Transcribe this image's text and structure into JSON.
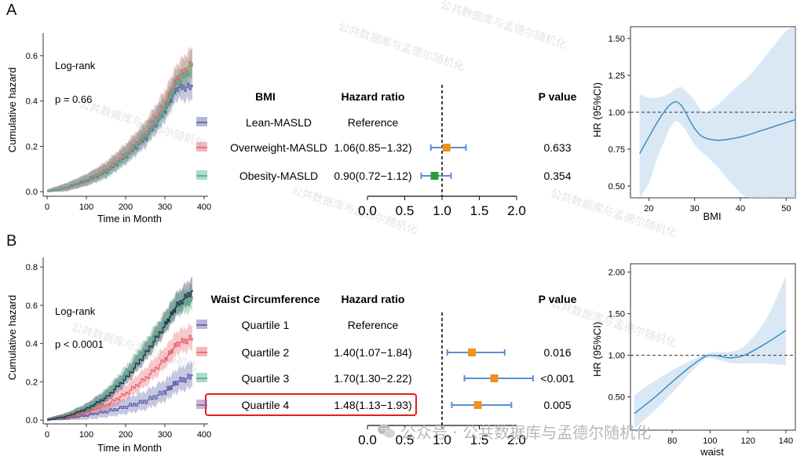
{
  "panels": {
    "a": "A",
    "b": "B"
  },
  "panelA": {
    "km": {
      "ylabel": "Cumulative hazard",
      "xlabel": "Time in Month",
      "xticks": [
        "0",
        "100",
        "200",
        "300",
        "400"
      ],
      "yticks": [
        "0.0",
        "0.2",
        "0.4",
        "0.6"
      ],
      "logrank_label": "Log-rank",
      "p_text": "p = 0.66"
    },
    "forest": {
      "col_group": "BMI",
      "col_hr": "Hazard ratio",
      "col_p": "P value",
      "xticks": [
        "0.0",
        "0.5",
        "1.0",
        "1.5",
        "2.0"
      ],
      "rows": [
        {
          "label": "Lean-MASLD",
          "hr_text": "Reference",
          "p": "",
          "color": "#5b5ea6"
        },
        {
          "label": "Overweight-MASLD",
          "hr_text": "1.06(0.85−1.32)",
          "p": "0.633",
          "color": "#e8626a"
        },
        {
          "label": "Obesity-MASLD",
          "hr_text": "0.90(0.72−1.12)",
          "p": "0.354",
          "color": "#4aad7c"
        }
      ]
    },
    "spline": {
      "ylabel": "HR (95%CI)",
      "xlabel": "BMI",
      "xticks": [
        "20",
        "30",
        "40",
        "50"
      ],
      "yticks": [
        "0.50",
        "0.75",
        "1.00",
        "1.25",
        "1.50"
      ]
    }
  },
  "panelB": {
    "km": {
      "ylabel": "Cumulative hazard",
      "xlabel": "Time in Month",
      "xticks": [
        "0",
        "100",
        "200",
        "300",
        "400"
      ],
      "yticks": [
        "0.0",
        "0.2",
        "0.4",
        "0.6",
        "0.8"
      ],
      "logrank_label": "Log-rank",
      "p_text": "p < 0.0001"
    },
    "forest": {
      "col_group": "Waist Circumference",
      "col_hr": "Hazard ratio",
      "col_p": "P value",
      "xticks": [
        "0.0",
        "0.5",
        "1.0",
        "1.5",
        "2.0"
      ],
      "rows": [
        {
          "label": "Quartile 1",
          "hr_text": "Reference",
          "p": "",
          "color": "#5b5ea6"
        },
        {
          "label": "Quartile 2",
          "hr_text": "1.40(1.07−1.84)",
          "p": "0.016",
          "color": "#e8626a"
        },
        {
          "label": "Quartile 3",
          "hr_text": "1.70(1.30−2.22)",
          "p": "<0.001",
          "color": "#4aad7c"
        },
        {
          "label": "Quartile 4",
          "hr_text": "1.48(1.13−1.93)",
          "p": "0.005",
          "color": "#8e5ea8"
        }
      ]
    },
    "spline": {
      "ylabel": "HR (95%CI)",
      "xlabel": "waist",
      "xticks": [
        "80",
        "100",
        "120",
        "140"
      ],
      "yticks": [
        "0.50",
        "1.00",
        "1.50",
        "2.00"
      ]
    }
  },
  "watermark": {
    "text": "公共数据库与孟德尔随机化",
    "footer": "公众号 · 公共数据库与孟德尔随机化"
  },
  "chart_data": [
    {
      "type": "line",
      "id": "A-km",
      "title": "",
      "xlabel": "Time in Month",
      "ylabel": "Cumulative hazard",
      "xlim": [
        -10,
        410
      ],
      "ylim": [
        -0.02,
        0.7
      ],
      "annotations": [
        "Log-rank",
        "p = 0.66"
      ],
      "series": [
        {
          "name": "Lean-MASLD",
          "color": "#5b5ea6",
          "x": [
            0,
            50,
            100,
            150,
            200,
            250,
            300,
            330,
            370
          ],
          "y": [
            0,
            0.02,
            0.05,
            0.09,
            0.16,
            0.24,
            0.36,
            0.46,
            0.46
          ]
        },
        {
          "name": "Overweight-MASLD",
          "color": "#e8626a",
          "x": [
            0,
            50,
            100,
            150,
            200,
            250,
            300,
            330,
            370
          ],
          "y": [
            0,
            0.02,
            0.05,
            0.1,
            0.17,
            0.26,
            0.39,
            0.5,
            0.57
          ]
        },
        {
          "name": "Obesity-MASLD",
          "color": "#4aad7c",
          "x": [
            0,
            50,
            100,
            150,
            200,
            250,
            300,
            330,
            370
          ],
          "y": [
            0,
            0.02,
            0.05,
            0.09,
            0.16,
            0.25,
            0.37,
            0.48,
            0.55
          ]
        }
      ]
    },
    {
      "type": "scatter",
      "id": "A-forest",
      "title": "",
      "xlabel": "Hazard ratio",
      "xlim": [
        0,
        2.0
      ],
      "reference_line": 1.0,
      "points": [
        {
          "name": "Overweight-MASLD",
          "hr": 1.06,
          "lo": 0.85,
          "hi": 1.32,
          "color": "#f0921c"
        },
        {
          "name": "Obesity-MASLD",
          "hr": 0.9,
          "lo": 0.72,
          "hi": 1.12,
          "color": "#2d9b3a"
        }
      ]
    },
    {
      "type": "line",
      "id": "A-spline",
      "title": "",
      "xlabel": "BMI",
      "ylabel": "HR (95%CI)",
      "xlim": [
        16,
        52
      ],
      "ylim": [
        0.42,
        1.58
      ],
      "reference_line": 1.0,
      "x": [
        18,
        20,
        22,
        24,
        25,
        26,
        27,
        28,
        30,
        32,
        35,
        38,
        41,
        44,
        47,
        50,
        52
      ],
      "y": [
        0.72,
        0.83,
        0.94,
        1.03,
        1.06,
        1.07,
        1.05,
        1.0,
        0.89,
        0.83,
        0.81,
        0.82,
        0.84,
        0.87,
        0.9,
        0.93,
        0.95
      ],
      "lower": [
        0.38,
        0.52,
        0.7,
        0.85,
        0.91,
        0.94,
        0.92,
        0.88,
        0.78,
        0.72,
        0.63,
        0.52,
        0.43,
        0.36,
        0.3,
        0.26,
        0.24
      ],
      "upper": [
        1.12,
        1.1,
        1.1,
        1.12,
        1.14,
        1.16,
        1.17,
        1.15,
        1.08,
        1.0,
        1.05,
        1.14,
        1.22,
        1.32,
        1.44,
        1.55,
        1.6
      ]
    },
    {
      "type": "line",
      "id": "B-km",
      "title": "",
      "xlabel": "Time in Month",
      "ylabel": "Cumulative hazard",
      "xlim": [
        -10,
        410
      ],
      "ylim": [
        -0.02,
        0.85
      ],
      "annotations": [
        "Log-rank",
        "p < 0.0001"
      ],
      "series": [
        {
          "name": "Quartile 1",
          "color": "#5b5ea6",
          "x": [
            0,
            50,
            100,
            150,
            200,
            250,
            300,
            330,
            370
          ],
          "y": [
            0,
            0.01,
            0.025,
            0.045,
            0.07,
            0.1,
            0.15,
            0.2,
            0.23
          ]
        },
        {
          "name": "Quartile 2",
          "color": "#e8626a",
          "x": [
            0,
            50,
            100,
            150,
            200,
            250,
            300,
            330,
            370
          ],
          "y": [
            0,
            0.015,
            0.04,
            0.08,
            0.14,
            0.22,
            0.32,
            0.4,
            0.43
          ]
        },
        {
          "name": "Quartile 3",
          "color": "#4aad7c",
          "x": [
            0,
            50,
            100,
            150,
            200,
            250,
            300,
            330,
            370
          ],
          "y": [
            0,
            0.02,
            0.06,
            0.13,
            0.24,
            0.37,
            0.51,
            0.6,
            0.63
          ]
        },
        {
          "name": "Quartile 4",
          "color": "#1d2d4a",
          "x": [
            0,
            50,
            100,
            150,
            200,
            250,
            300,
            330,
            370
          ],
          "y": [
            0,
            0.02,
            0.06,
            0.12,
            0.22,
            0.35,
            0.5,
            0.6,
            0.68
          ]
        }
      ]
    },
    {
      "type": "scatter",
      "id": "B-forest",
      "title": "",
      "xlabel": "Hazard ratio",
      "xlim": [
        0,
        2.0
      ],
      "reference_line": 1.0,
      "points": [
        {
          "name": "Quartile 2",
          "hr": 1.4,
          "lo": 1.07,
          "hi": 1.84,
          "color": "#f0921c"
        },
        {
          "name": "Quartile 3",
          "hr": 1.7,
          "lo": 1.3,
          "hi": 2.22,
          "color": "#f0921c"
        },
        {
          "name": "Quartile 4",
          "hr": 1.48,
          "lo": 1.13,
          "hi": 1.93,
          "color": "#f0921c"
        }
      ]
    },
    {
      "type": "line",
      "id": "B-spline",
      "title": "",
      "xlabel": "waist",
      "ylabel": "HR (95%CI)",
      "xlim": [
        58,
        145
      ],
      "ylim": [
        0.1,
        2.1
      ],
      "reference_line": 1.0,
      "x": [
        60,
        70,
        80,
        90,
        97,
        100,
        105,
        110,
        115,
        120,
        130,
        140
      ],
      "y": [
        0.3,
        0.48,
        0.68,
        0.87,
        0.98,
        1.0,
        0.99,
        0.97,
        0.98,
        1.02,
        1.15,
        1.3
      ],
      "lower": [
        0.12,
        0.32,
        0.55,
        0.8,
        0.95,
        0.97,
        0.94,
        0.91,
        0.9,
        0.9,
        0.9,
        0.88
      ],
      "upper": [
        0.52,
        0.68,
        0.82,
        0.94,
        1.01,
        1.03,
        1.04,
        1.04,
        1.07,
        1.15,
        1.45,
        1.95
      ]
    }
  ]
}
